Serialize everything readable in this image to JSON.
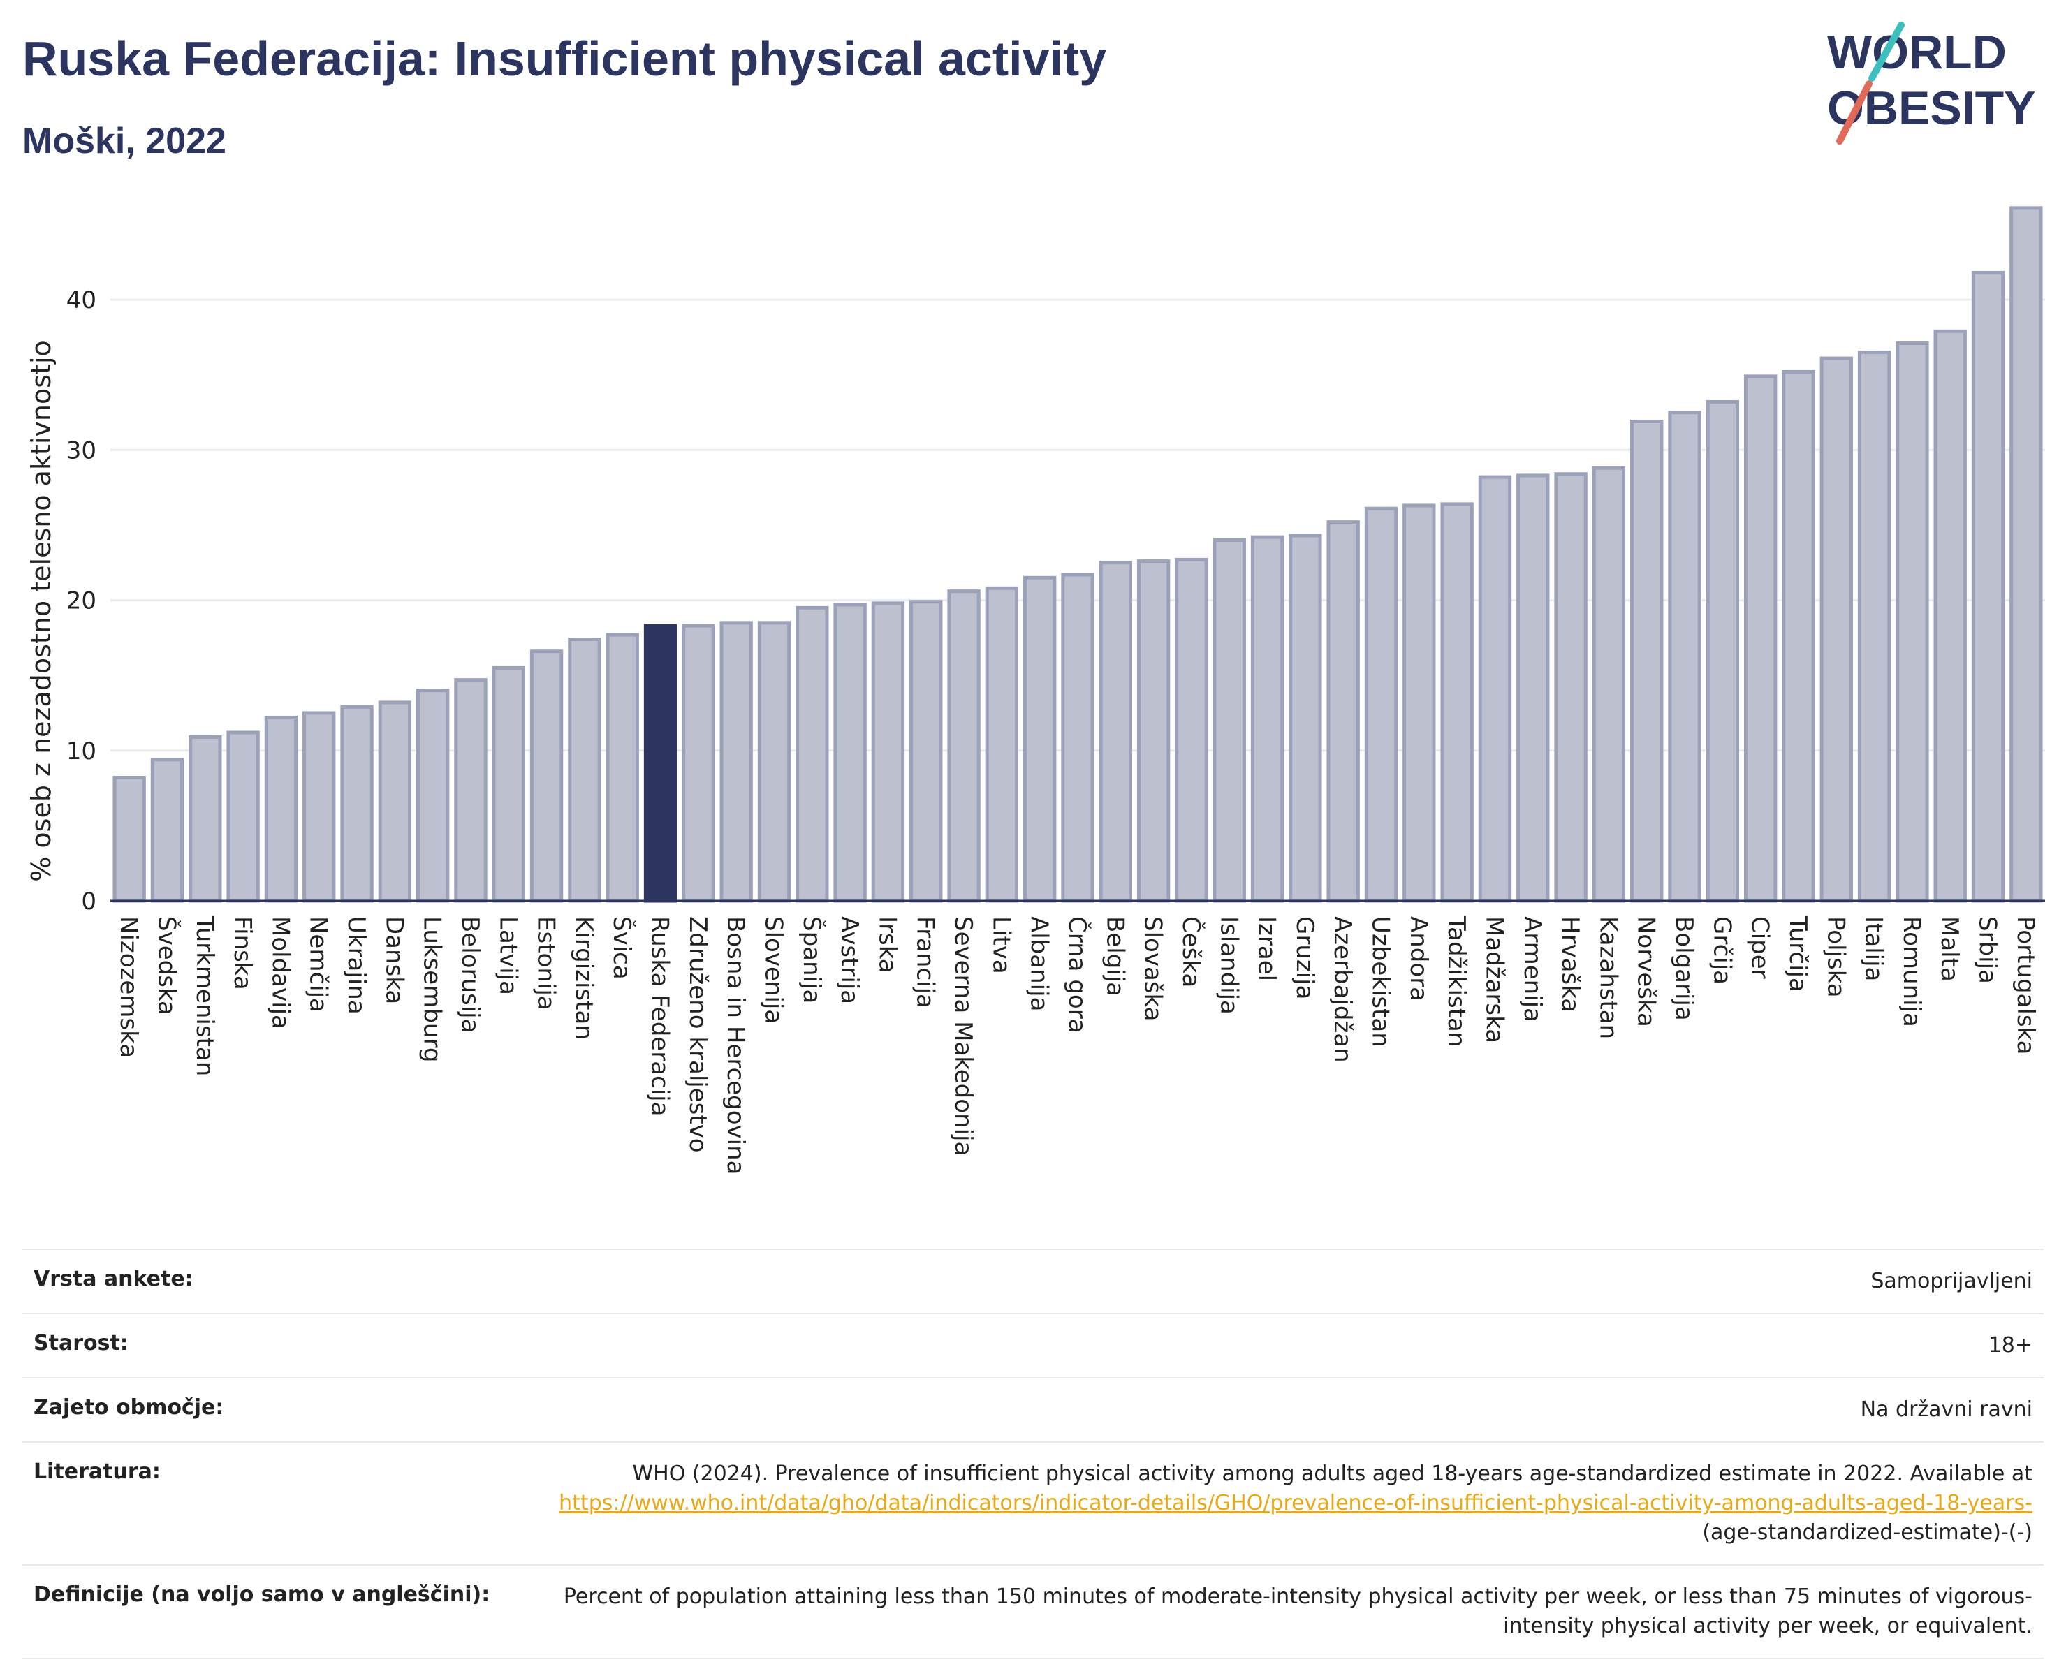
{
  "title": "Ruska Federacija: Insufficient physical activity",
  "subtitle": "Moški, 2022",
  "logo": {
    "line1": "WORLD",
    "line2": "OBESITY"
  },
  "colors": {
    "bar": "#bcc0cf",
    "bar_edge": "#9ba1b8",
    "highlight": "#2b3560",
    "grid": "#e9ebef",
    "link": "#e8a917"
  },
  "chart_data": {
    "type": "bar",
    "ylabel": "% oseb z nezadostno telesno aktivnostjo",
    "ylim": [
      0,
      46
    ],
    "yticks": [
      0,
      10,
      20,
      30,
      40
    ],
    "grid": true,
    "highlight": "Ruska Federacija",
    "categories": [
      "Nizozemska",
      "Švedska",
      "Turkmenistan",
      "Finska",
      "Moldavija",
      "Nemčija",
      "Ukrajina",
      "Danska",
      "Luksemburg",
      "Belorusija",
      "Latvija",
      "Estonija",
      "Kirgizistan",
      "Švica",
      "Ruska Federacija",
      "Združeno kraljestvo",
      "Bosna in Hercegovina",
      "Slovenija",
      "Španija",
      "Avstrija",
      "Irska",
      "Francija",
      "Severna Makedonija",
      "Litva",
      "Albanija",
      "Črna gora",
      "Belgija",
      "Slovaška",
      "Češka",
      "Islandija",
      "Izrael",
      "Gruzija",
      "Azerbajdžan",
      "Uzbekistan",
      "Andora",
      "Tadžikistan",
      "Madžarska",
      "Armenija",
      "Hrvaška",
      "Kazahstan",
      "Norveška",
      "Bolgarija",
      "Grčija",
      "Ciper",
      "Turčija",
      "Poljska",
      "Italija",
      "Romunija",
      "Malta",
      "Srbija",
      "Portugalska"
    ],
    "values": [
      8.2,
      9.4,
      10.9,
      11.2,
      12.2,
      12.5,
      12.9,
      13.2,
      14.0,
      14.7,
      15.5,
      16.6,
      17.4,
      17.7,
      18.3,
      18.3,
      18.5,
      18.5,
      19.5,
      19.7,
      19.8,
      19.9,
      20.6,
      20.8,
      21.5,
      21.7,
      22.5,
      22.6,
      22.7,
      24.0,
      24.2,
      24.3,
      25.2,
      26.1,
      26.3,
      26.4,
      28.2,
      28.3,
      28.4,
      28.8,
      31.9,
      32.5,
      33.2,
      34.9,
      35.2,
      36.1,
      36.5,
      37.1,
      37.9,
      41.8,
      46.1
    ]
  },
  "meta": {
    "survey": {
      "label": "Vrsta ankete:",
      "value": "Samoprijavljeni"
    },
    "age": {
      "label": "Starost:",
      "value": "18+"
    },
    "coverage": {
      "label": "Zajeto območje:",
      "value": "Na državni ravni"
    },
    "reference": {
      "label": "Literatura:",
      "text": "WHO (2024). Prevalence of insufficient physical activity among adults aged 18-years age-standardized estimate in 2022. Available at",
      "link": "https://www.who.int/data/gho/data/indicators/indicator-details/GHO/prevalence-of-insufficient-physical-activity-among-adults-aged-18-years-",
      "suffix": "(age-standardized-estimate)-(-)"
    },
    "definition": {
      "label": "Definicije (na voljo samo v angleščini):",
      "value": "Percent of population attaining less than 150 minutes of moderate-intensity physical activity per week, or less than 75 minutes of vigorous-intensity physical activity per week, or equivalent."
    }
  }
}
